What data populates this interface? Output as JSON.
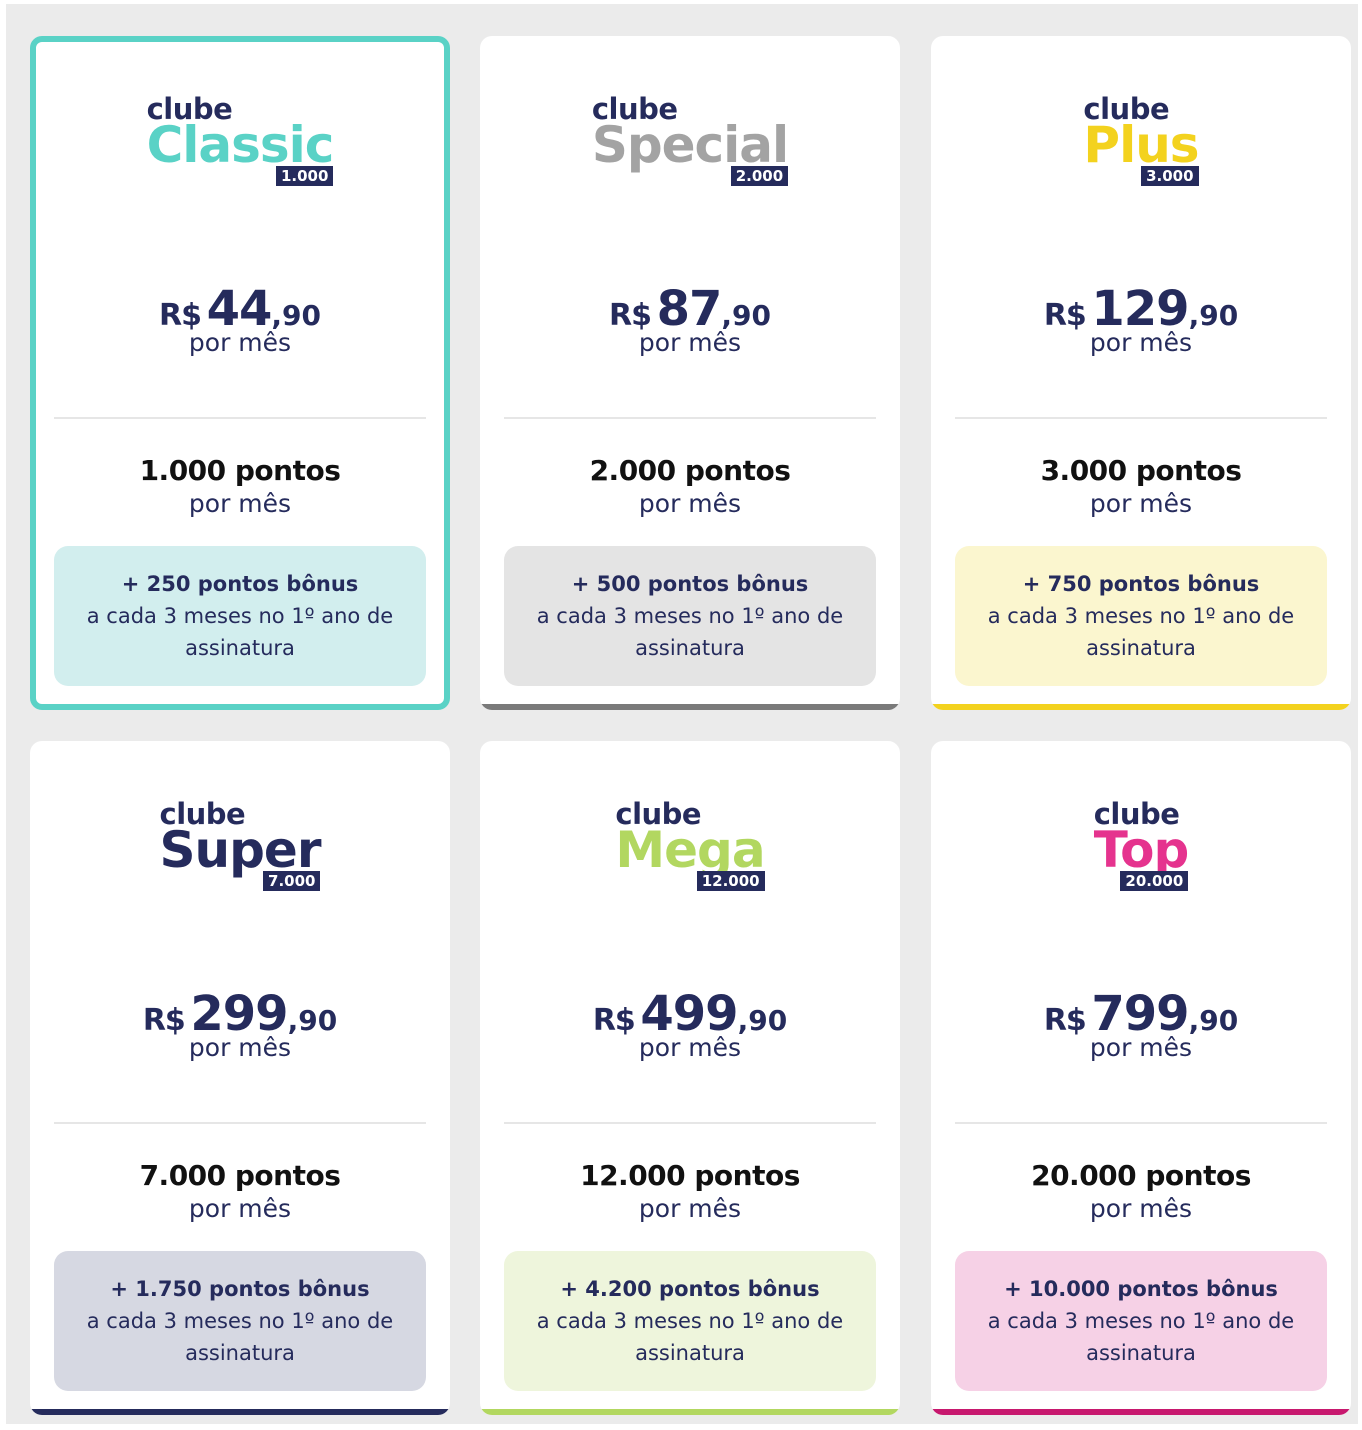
{
  "plans": [
    {
      "prefix": "clube",
      "name": "Classic",
      "badge": "1.000",
      "name_color": "#5ad2c6",
      "currency": "R$",
      "price_int": "44",
      "price_dec": ",90",
      "price_period": "por mês",
      "points": "1.000 pontos",
      "points_period": "por mês",
      "bonus_title": "+ 250 pontos bônus",
      "bonus_text": "a cada 3 meses no 1º ano de assinatura",
      "bonus_bg": "#d2eeee",
      "accent": "#5ad2c6",
      "selected": true
    },
    {
      "prefix": "clube",
      "name": "Special",
      "badge": "2.000",
      "name_color": "#a3a3a3",
      "currency": "R$",
      "price_int": "87",
      "price_dec": ",90",
      "price_period": "por mês",
      "points": "2.000 pontos",
      "points_period": "por mês",
      "bonus_title": "+ 500 pontos bônus",
      "bonus_text": "a cada 3 meses no 1º ano de assinatura",
      "bonus_bg": "#e4e4e4",
      "accent": "#7a7a7a",
      "selected": false
    },
    {
      "prefix": "clube",
      "name": "Plus",
      "badge": "3.000",
      "name_color": "#f3d21e",
      "currency": "R$",
      "price_int": "129",
      "price_dec": ",90",
      "price_period": "por mês",
      "points": "3.000 pontos",
      "points_period": "por mês",
      "bonus_title": "+ 750 pontos bônus",
      "bonus_text": "a cada 3 meses no 1º ano de assinatura",
      "bonus_bg": "#fbf6cf",
      "accent": "#f3d21e",
      "selected": false
    },
    {
      "prefix": "clube",
      "name": "Super",
      "badge": "7.000",
      "name_color": "#252b5c",
      "currency": "R$",
      "price_int": "299",
      "price_dec": ",90",
      "price_period": "por mês",
      "points": "7.000 pontos",
      "points_period": "por mês",
      "bonus_title": "+ 1.750 pontos bônus",
      "bonus_text": "a cada 3 meses no 1º ano de assinatura",
      "bonus_bg": "#d6d8e2",
      "accent": "#252b5c",
      "selected": false
    },
    {
      "prefix": "clube",
      "name": "Mega",
      "badge": "12.000",
      "name_color": "#b2d760",
      "currency": "R$",
      "price_int": "499",
      "price_dec": ",90",
      "price_period": "por mês",
      "points": "12.000 pontos",
      "points_period": "por mês",
      "bonus_title": "+ 4.200 pontos bônus",
      "bonus_text": "a cada 3 meses no 1º ano de assinatura",
      "bonus_bg": "#eef5dc",
      "accent": "#b2d760",
      "selected": false
    },
    {
      "prefix": "clube",
      "name": "Top",
      "badge": "20.000",
      "name_color": "#e5338e",
      "currency": "R$",
      "price_int": "799",
      "price_dec": ",90",
      "price_period": "por mês",
      "points": "20.000 pontos",
      "points_period": "por mês",
      "bonus_title": "+ 10.000 pontos bônus",
      "bonus_text": "a cada 3 meses no 1º ano de assinatura",
      "bonus_bg": "#f6d1e6",
      "accent": "#c7186e",
      "selected": false
    }
  ]
}
